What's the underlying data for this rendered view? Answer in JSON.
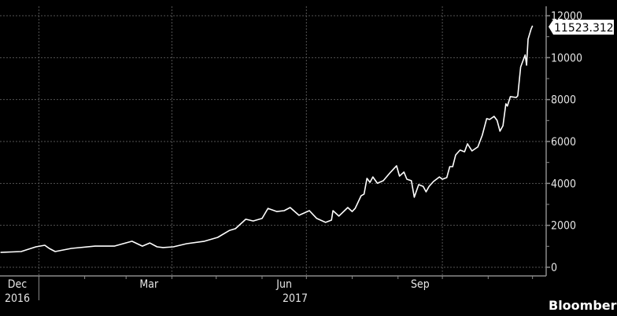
{
  "chart_data": {
    "type": "line",
    "title": "",
    "xlabel": "",
    "ylabel": "",
    "ylim": [
      0,
      12000
    ],
    "xlim": [
      "2016-12-05",
      "2017-12-01"
    ],
    "grid": true,
    "y_ticks": [
      "0",
      "2000",
      "4000",
      "6000",
      "8000",
      "10000",
      "12000"
    ],
    "x_month_labels": [
      {
        "label": "Dec",
        "month": "2016-12"
      },
      {
        "label": "Mar",
        "month": "2017-03"
      },
      {
        "label": "Jun",
        "month": "2017-06"
      },
      {
        "label": "Sep",
        "month": "2017-09"
      }
    ],
    "x_year_labels": [
      {
        "label": "2016",
        "year": 2016
      },
      {
        "label": "2017",
        "year": 2017
      }
    ],
    "last_value_label": "11523.3125",
    "line_color": "#ffffff",
    "background": "#000000",
    "series": [
      {
        "x": [
          "2016-12-06",
          "2016-12-20",
          "2016-12-30",
          "2017-01-05",
          "2017-01-08",
          "2017-01-12",
          "2017-01-23",
          "2017-02-08",
          "2017-02-21",
          "2017-03-05",
          "2017-03-12",
          "2017-03-17",
          "2017-03-22",
          "2017-03-26",
          "2017-04-02",
          "2017-04-11",
          "2017-04-23",
          "2017-05-02",
          "2017-05-10",
          "2017-05-14",
          "2017-05-21",
          "2017-05-26",
          "2017-06-01",
          "2017-06-05",
          "2017-06-11",
          "2017-06-16",
          "2017-06-20",
          "2017-06-26",
          "2017-07-03",
          "2017-07-08",
          "2017-07-14",
          "2017-07-18",
          "2017-07-19",
          "2017-07-23",
          "2017-07-29",
          "2017-08-01",
          "2017-08-03",
          "2017-08-07",
          "2017-08-09",
          "2017-08-11",
          "2017-08-13",
          "2017-08-15",
          "2017-08-18",
          "2017-08-22",
          "2017-08-27",
          "2017-08-31",
          "2017-09-02",
          "2017-09-05",
          "2017-09-07",
          "2017-09-10",
          "2017-09-12",
          "2017-09-15",
          "2017-09-18",
          "2017-09-20",
          "2017-09-22",
          "2017-09-25",
          "2017-09-29",
          "2017-10-01",
          "2017-10-04",
          "2017-10-06",
          "2017-10-08",
          "2017-10-10",
          "2017-10-13",
          "2017-10-16",
          "2017-10-18",
          "2017-10-21",
          "2017-10-25",
          "2017-10-28",
          "2017-10-31",
          "2017-11-02",
          "2017-11-05",
          "2017-11-07",
          "2017-11-09",
          "2017-11-11",
          "2017-11-13",
          "2017-11-14",
          "2017-11-16",
          "2017-11-20",
          "2017-11-21",
          "2017-11-23",
          "2017-11-26",
          "2017-11-27",
          "2017-11-28",
          "2017-11-30",
          "2017-12-01"
        ],
        "y": [
          710,
          750,
          975,
          1050,
          900,
          750,
          900,
          1010,
          1010,
          1240,
          1010,
          1160,
          975,
          940,
          975,
          1125,
          1240,
          1425,
          1760,
          1840,
          2290,
          2210,
          2330,
          2810,
          2660,
          2700,
          2850,
          2480,
          2700,
          2330,
          2140,
          2250,
          2700,
          2440,
          2850,
          2660,
          2810,
          3410,
          3490,
          4240,
          4050,
          4310,
          4010,
          4130,
          4540,
          4840,
          4350,
          4540,
          4200,
          4130,
          3340,
          3940,
          3860,
          3600,
          3860,
          4090,
          4310,
          4200,
          4280,
          4800,
          4800,
          5360,
          5590,
          5510,
          5890,
          5550,
          5740,
          6300,
          7090,
          7050,
          7200,
          7010,
          6490,
          6750,
          7800,
          7690,
          8140,
          8100,
          8180,
          9560,
          10130,
          9640,
          10880,
          11360,
          11523.3125
        ]
      }
    ]
  },
  "branding": {
    "logo_text": "Bloomberg"
  }
}
